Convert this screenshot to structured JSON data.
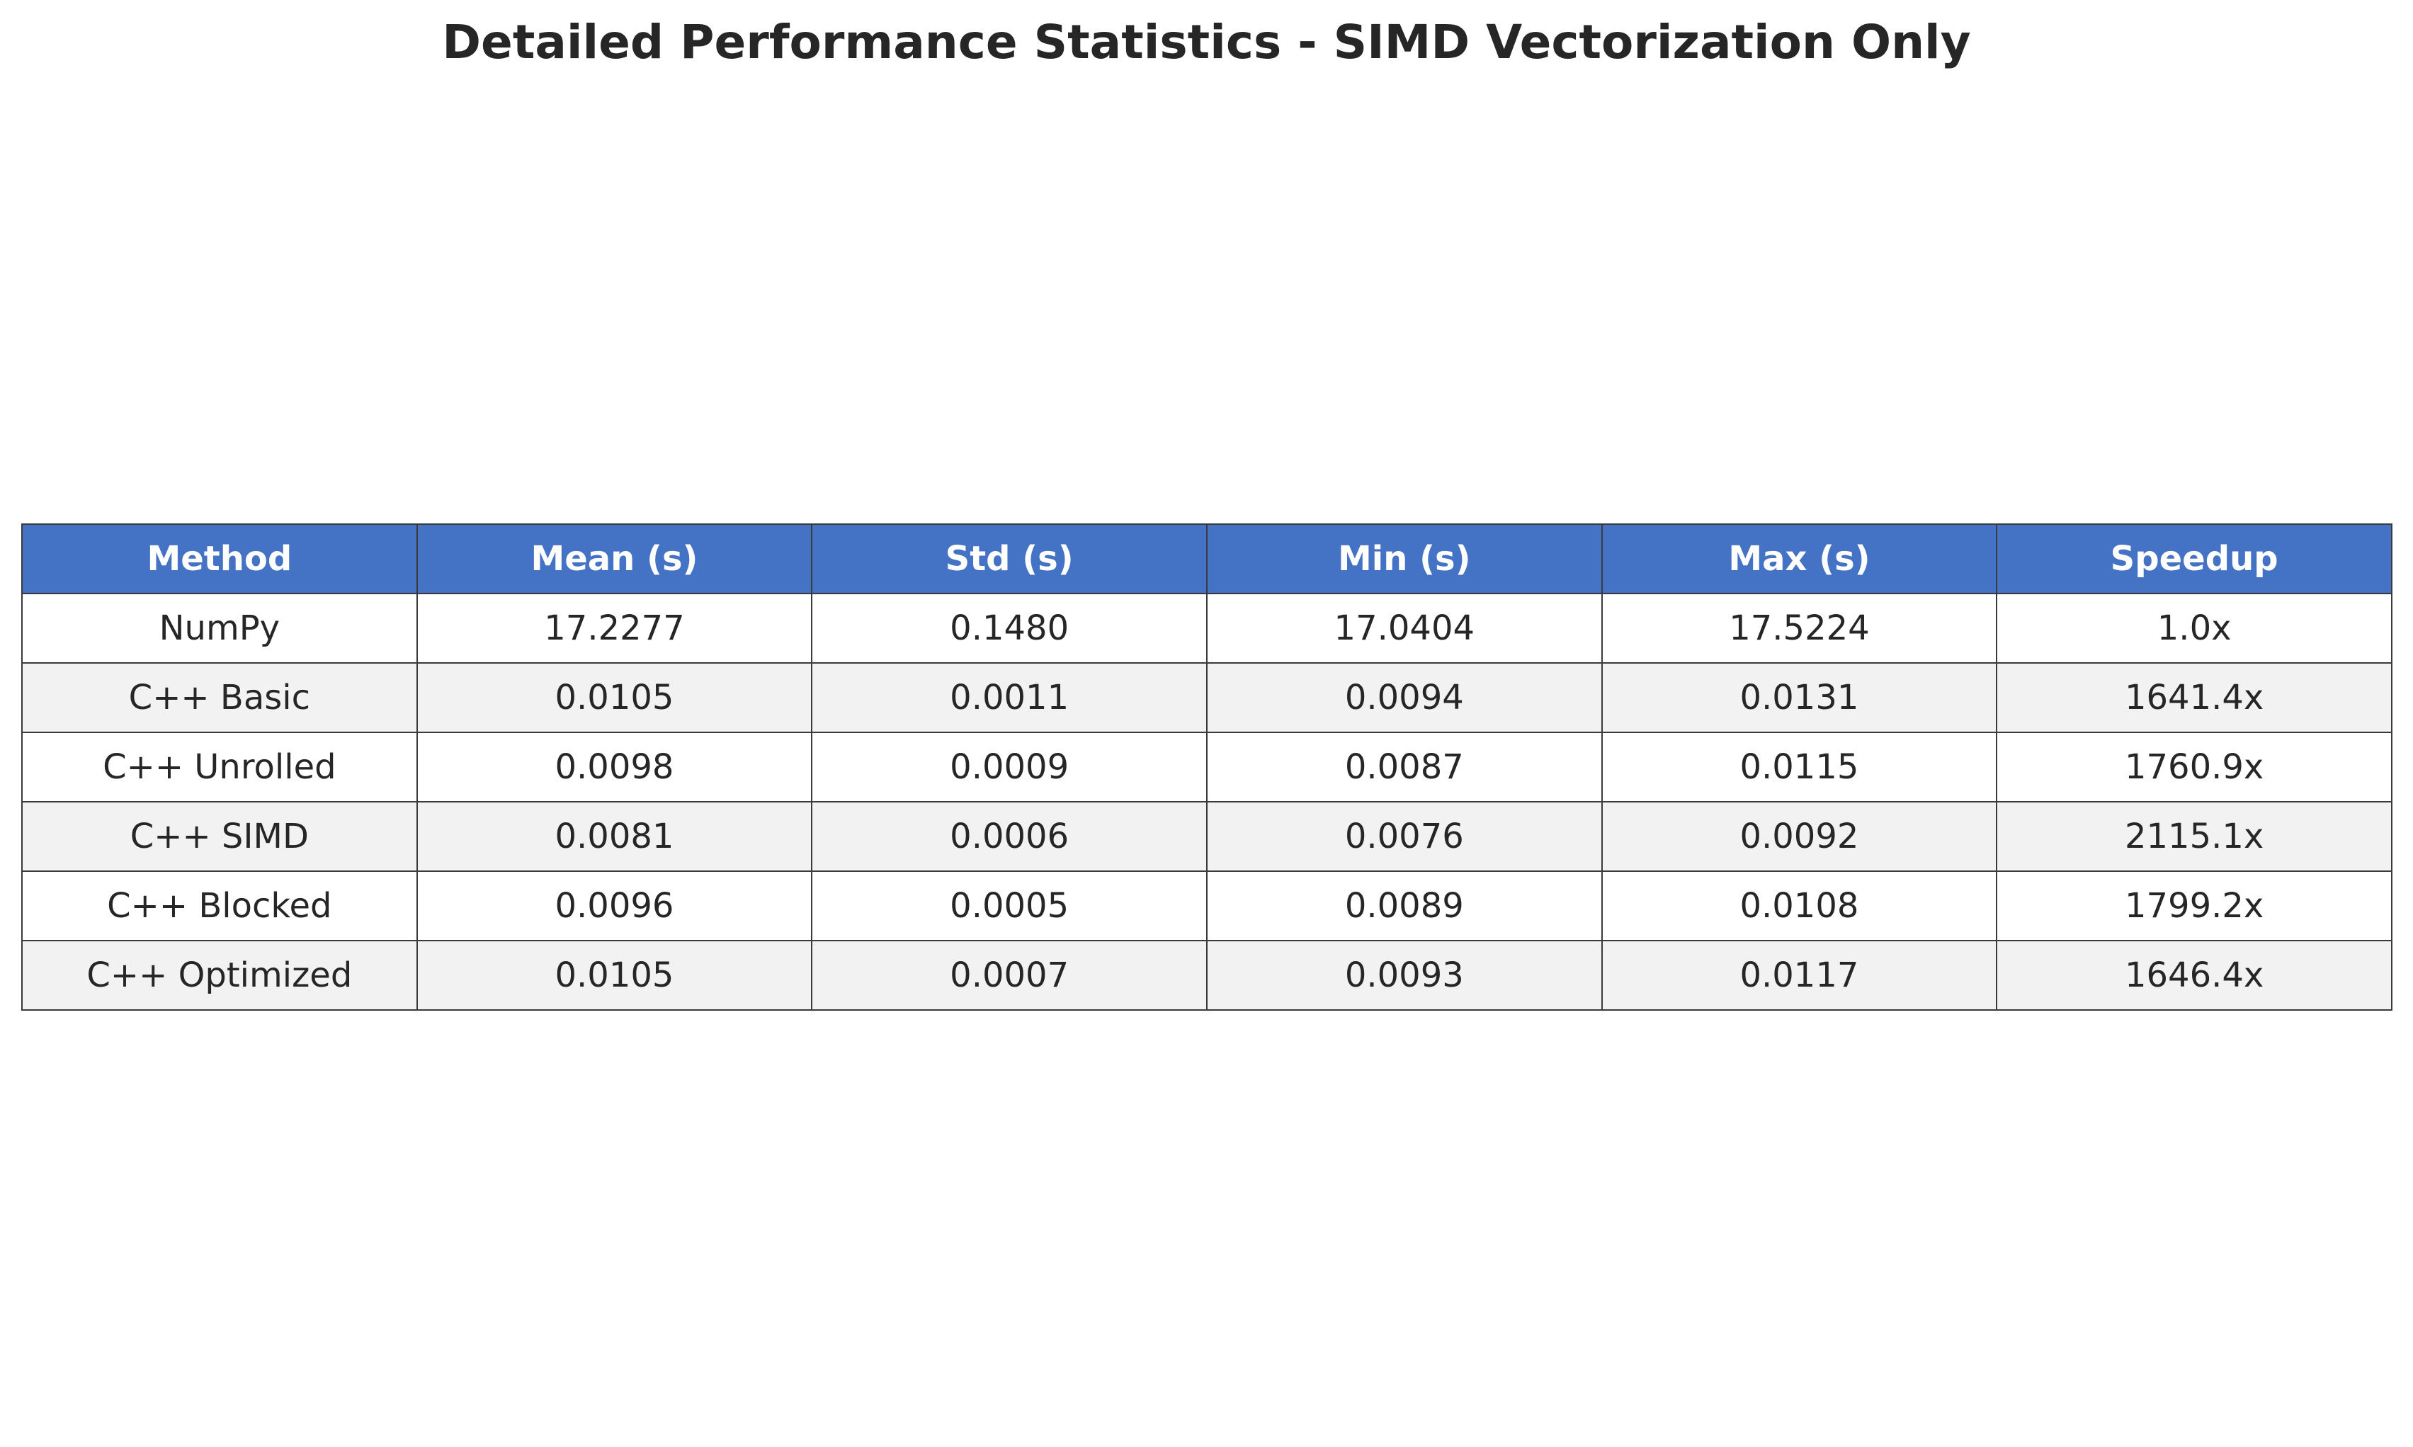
{
  "chart_data": {
    "type": "table",
    "title": "Detailed Performance Statistics - SIMD Vectorization Only",
    "columns": [
      "Method",
      "Mean (s)",
      "Std (s)",
      "Min (s)",
      "Max (s)",
      "Speedup"
    ],
    "rows": [
      [
        "NumPy",
        "17.2277",
        "0.1480",
        "17.0404",
        "17.5224",
        "1.0x"
      ],
      [
        "C++ Basic",
        "0.0105",
        "0.0011",
        "0.0094",
        "0.0131",
        "1641.4x"
      ],
      [
        "C++ Unrolled",
        "0.0098",
        "0.0009",
        "0.0087",
        "0.0115",
        "1760.9x"
      ],
      [
        "C++ SIMD",
        "0.0081",
        "0.0006",
        "0.0076",
        "0.0092",
        "2115.1x"
      ],
      [
        "C++ Blocked",
        "0.0096",
        "0.0005",
        "0.0089",
        "0.0108",
        "1799.2x"
      ],
      [
        "C++ Optimized",
        "0.0105",
        "0.0007",
        "0.0093",
        "0.0117",
        "1646.4x"
      ]
    ],
    "header_color": "#4472c4",
    "header_text_color": "#ffffff",
    "row_colors": [
      "#ffffff",
      "#f2f2f2"
    ],
    "border_color": "#3a3a3a"
  }
}
